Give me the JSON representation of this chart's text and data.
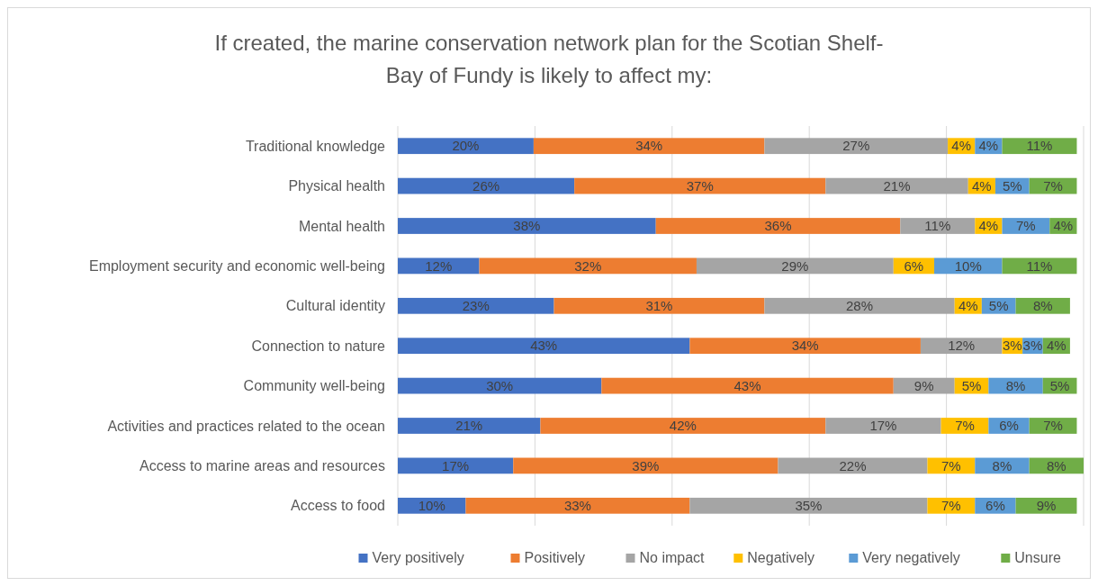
{
  "chart_data": {
    "type": "bar",
    "orientation": "horizontal",
    "stacked": true,
    "title": "If created, the marine conservation network plan for the Scotian Shelf-Bay of Fundy is likely to affect my:",
    "categories": [
      "Traditional knowledge",
      "Physical health",
      "Mental health",
      "Employment security and economic well-being",
      "Cultural identity",
      "Connection to nature",
      "Community well-being",
      "Activities and practices related to the ocean",
      "Access to marine areas and resources",
      "Access to food"
    ],
    "series": [
      {
        "name": "Very positively",
        "color": "#4472c4",
        "values": [
          20,
          26,
          38,
          12,
          23,
          43,
          30,
          21,
          17,
          10
        ],
        "value_labels": [
          "20%",
          "26%",
          "38%",
          "12%",
          "23%",
          "43%",
          "30%",
          "21%",
          "17%",
          "10%"
        ]
      },
      {
        "name": "Positively",
        "color": "#ed7d31",
        "values": [
          34,
          37,
          36,
          32,
          31,
          34,
          43,
          42,
          39,
          33
        ],
        "value_labels": [
          "34%",
          "37%",
          "36%",
          "32%",
          "31%",
          "34%",
          "43%",
          "42%",
          "39%",
          "33%"
        ]
      },
      {
        "name": "No impact",
        "color": "#a5a5a5",
        "values": [
          27,
          21,
          11,
          29,
          28,
          12,
          9,
          17,
          22,
          35
        ],
        "value_labels": [
          "27%",
          "21%",
          "11%",
          "29%",
          "28%",
          "12%",
          "9%",
          "17%",
          "22%",
          "35%"
        ]
      },
      {
        "name": "Negatively",
        "color": "#ffc000",
        "values": [
          4,
          4,
          4,
          6,
          4,
          3,
          5,
          7,
          7,
          7
        ],
        "value_labels": [
          "4%",
          "4%",
          "4%",
          "6%",
          "4%",
          "3%",
          "5%",
          "7%",
          "7%",
          "7%"
        ]
      },
      {
        "name": "Very negatively",
        "color": "#5b9bd5",
        "values": [
          4,
          5,
          7,
          10,
          5,
          3,
          8,
          6,
          8,
          6
        ],
        "value_labels": [
          "4%",
          "5%",
          "7%",
          "10%",
          "5%",
          "3%",
          "8%",
          "6%",
          "8%",
          "6%"
        ]
      },
      {
        "name": "Unsure",
        "color": "#70ad47",
        "values": [
          11,
          7,
          4,
          11,
          8,
          4,
          5,
          7,
          8,
          9
        ],
        "value_labels": [
          "11%",
          "7%",
          "4%",
          "11%",
          "8%",
          "4%",
          "5%",
          "7%",
          "8%",
          "9%"
        ]
      }
    ],
    "grid": "x",
    "tick_labels": "y",
    "legend": "bottom"
  }
}
